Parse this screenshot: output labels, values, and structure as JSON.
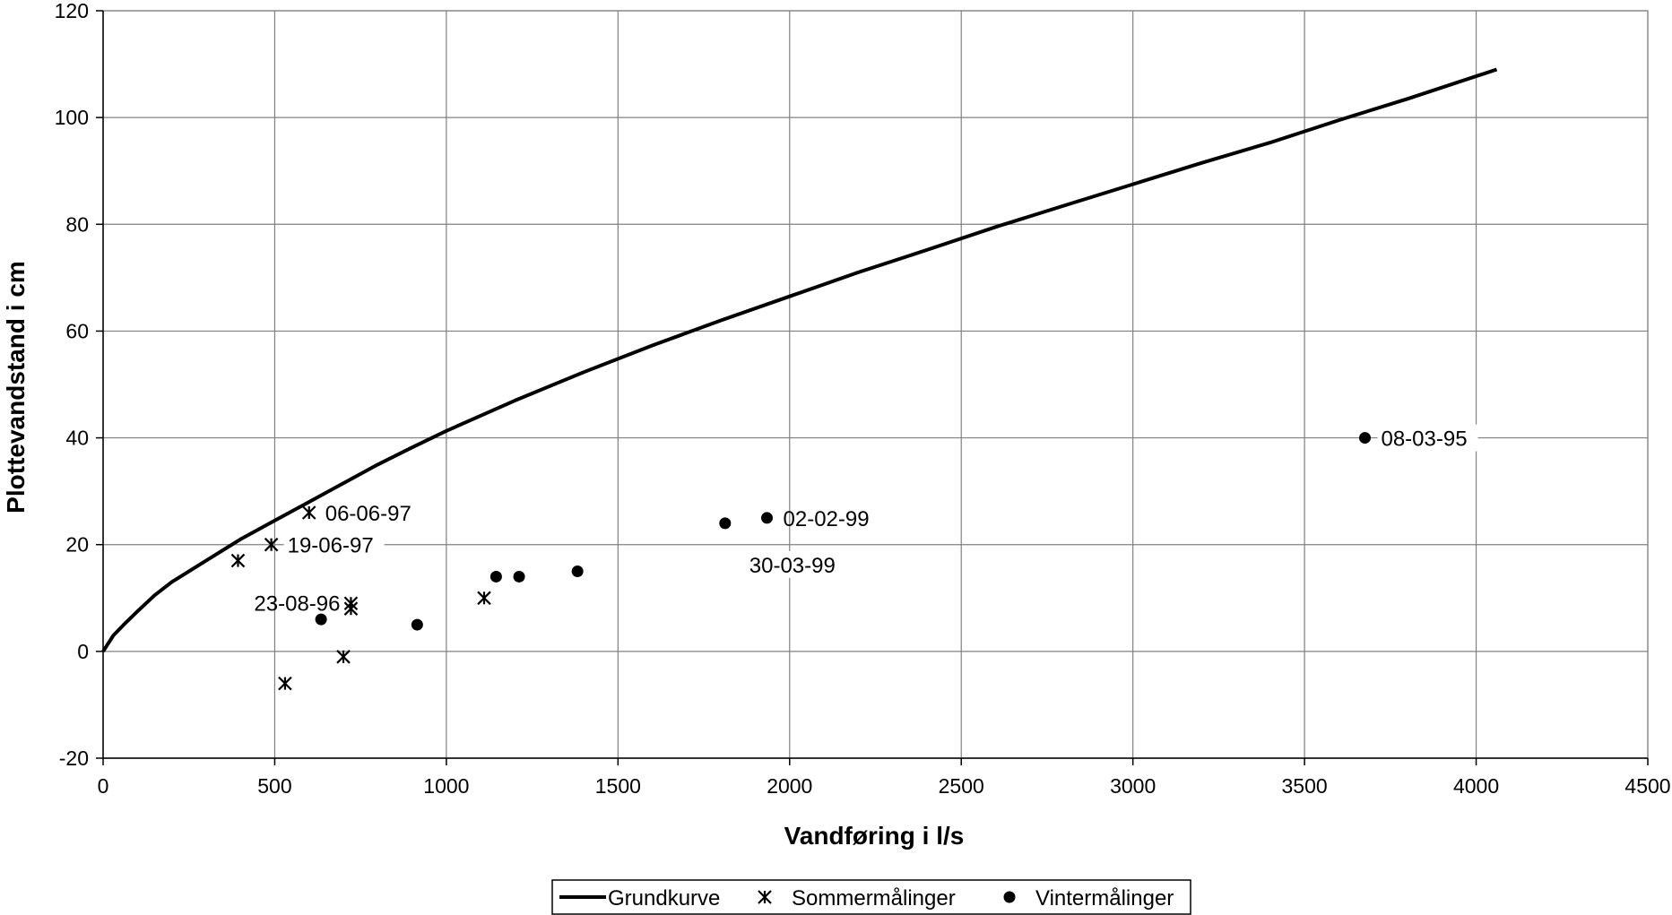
{
  "chart_data": {
    "type": "scatter",
    "title": "",
    "xlabel": "Vandføring i l/s",
    "ylabel": "Plottevandstand i cm",
    "xlim": [
      0,
      4500
    ],
    "ylim": [
      -20,
      120
    ],
    "x_ticks": [
      0,
      500,
      1000,
      1500,
      2000,
      2500,
      3000,
      3500,
      4000,
      4500
    ],
    "y_ticks": [
      -20,
      0,
      20,
      40,
      60,
      80,
      100,
      120
    ],
    "grid": true,
    "legend_position": "bottom",
    "series": [
      {
        "name": "Grundkurve",
        "kind": "line",
        "color": "#000000",
        "points": [
          [
            0,
            0
          ],
          [
            10,
            1
          ],
          [
            30,
            3
          ],
          [
            60,
            5
          ],
          [
            100,
            7.5
          ],
          [
            150,
            10.5
          ],
          [
            200,
            13
          ],
          [
            300,
            17
          ],
          [
            400,
            21
          ],
          [
            500,
            24.5
          ],
          [
            600,
            28
          ],
          [
            700,
            31.5
          ],
          [
            800,
            35
          ],
          [
            900,
            38.2
          ],
          [
            1000,
            41.3
          ],
          [
            1200,
            47
          ],
          [
            1400,
            52.3
          ],
          [
            1600,
            57.3
          ],
          [
            1800,
            62
          ],
          [
            2000,
            66.5
          ],
          [
            2200,
            71
          ],
          [
            2400,
            75.2
          ],
          [
            2600,
            79.5
          ],
          [
            2800,
            83.5
          ],
          [
            3000,
            87.5
          ],
          [
            3200,
            91.5
          ],
          [
            3400,
            95.3
          ],
          [
            3600,
            99.5
          ],
          [
            3800,
            103.5
          ],
          [
            4060,
            109
          ]
        ]
      },
      {
        "name": "Sommermålinger",
        "kind": "scatter",
        "marker": "asterisk",
        "color": "#000000",
        "points": [
          {
            "x": 393,
            "y": 17,
            "label": "23-08-96"
          },
          {
            "x": 490,
            "y": 20,
            "label": "19-06-97"
          },
          {
            "x": 600,
            "y": 26,
            "label": "06-06-97"
          },
          {
            "x": 530,
            "y": -6,
            "label": ""
          },
          {
            "x": 700,
            "y": -1,
            "label": ""
          },
          {
            "x": 722,
            "y": 9,
            "label": ""
          },
          {
            "x": 722,
            "y": 8,
            "label": ""
          },
          {
            "x": 1110,
            "y": 10,
            "label": ""
          }
        ]
      },
      {
        "name": "Vintermålinger",
        "kind": "scatter",
        "marker": "circle",
        "color": "#000000",
        "points": [
          {
            "x": 635,
            "y": 6,
            "label": ""
          },
          {
            "x": 915,
            "y": 5,
            "label": ""
          },
          {
            "x": 1145,
            "y": 14,
            "label": ""
          },
          {
            "x": 1212,
            "y": 14,
            "label": ""
          },
          {
            "x": 1382,
            "y": 15,
            "label": ""
          },
          {
            "x": 1812,
            "y": 24,
            "label": "30-03-99"
          },
          {
            "x": 1934,
            "y": 25,
            "label": "02-02-99"
          },
          {
            "x": 3676,
            "y": 40,
            "label": "08-03-95"
          }
        ]
      }
    ]
  }
}
